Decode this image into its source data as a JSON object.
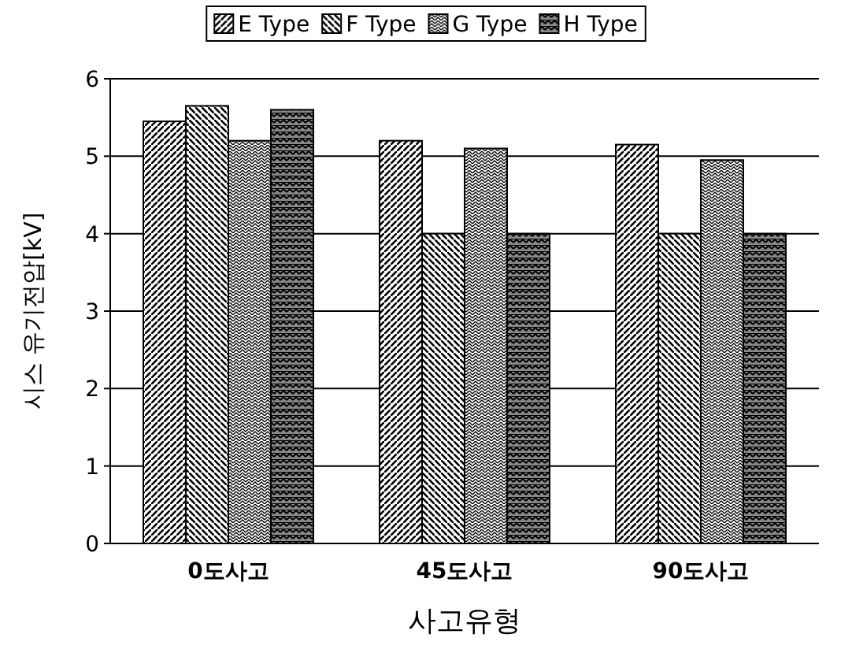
{
  "chart_data": {
    "type": "bar",
    "xlabel": "사고유형",
    "ylabel": "시스 유기전압[kV]",
    "categories": [
      "0도사고",
      "45도사고",
      "90도사고"
    ],
    "series": [
      {
        "name": "E Type",
        "color": "#000000",
        "values": [
          5.45,
          5.2,
          5.15
        ]
      },
      {
        "name": "F Type",
        "color": "#000000",
        "values": [
          5.65,
          4.0,
          4.0
        ]
      },
      {
        "name": "G Type",
        "color": "#000000",
        "values": [
          5.2,
          5.1,
          4.95
        ]
      },
      {
        "name": "H Type",
        "color": "#000000",
        "values": [
          5.6,
          4.0,
          4.0
        ]
      }
    ],
    "ylim": [
      0,
      6
    ],
    "yticks": [
      0,
      1,
      2,
      3,
      4,
      5,
      6
    ],
    "grid": "y",
    "legend": "top"
  }
}
